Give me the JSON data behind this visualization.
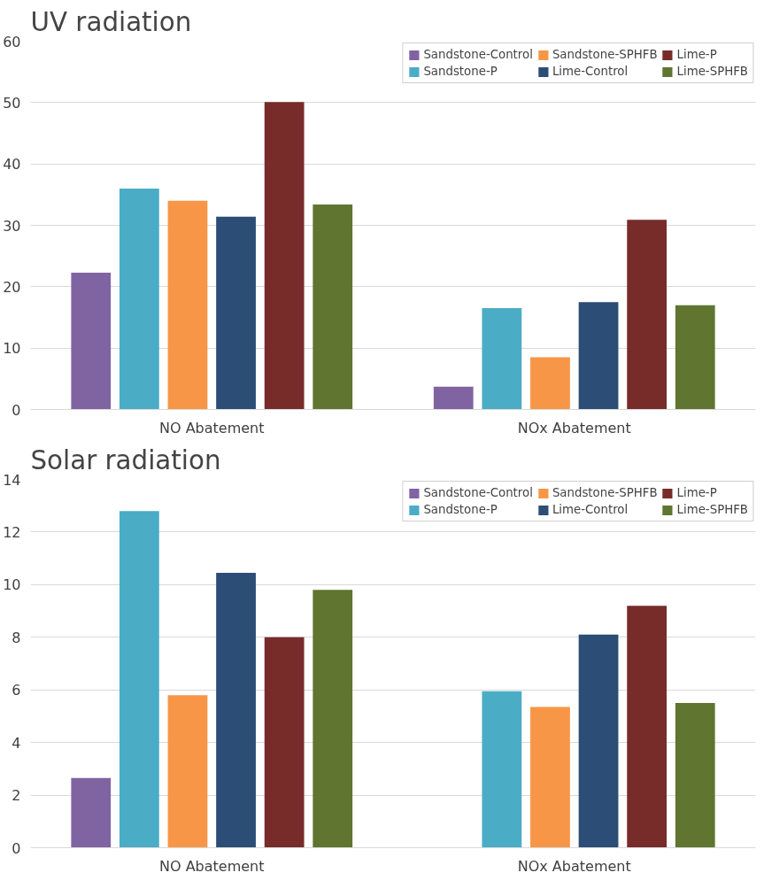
{
  "chart_data": [
    {
      "type": "bar",
      "title": "UV radiation",
      "categories": [
        "NO Abatement",
        "NOx Abatement"
      ],
      "series": [
        {
          "name": "Sandstone-Control",
          "color": "#8064a2",
          "values": [
            22.3,
            3.7
          ]
        },
        {
          "name": "Sandstone-P",
          "color": "#4bacc6",
          "values": [
            36,
            16.5
          ]
        },
        {
          "name": "Sandstone-SPHFB",
          "color": "#f79646",
          "values": [
            34,
            8.5
          ]
        },
        {
          "name": "Lime-Control",
          "color": "#2c4d75",
          "values": [
            31.4,
            17.5
          ]
        },
        {
          "name": "Lime-P",
          "color": "#772c2a",
          "values": [
            50.1,
            30.9
          ]
        },
        {
          "name": "Lime-SPHFB",
          "color": "#5f7530",
          "values": [
            33.4,
            17.0
          ]
        }
      ],
      "ylim": [
        0,
        60
      ],
      "yticks": [
        0,
        10,
        20,
        30,
        40,
        50,
        60
      ],
      "grid": "y",
      "legend": "top right"
    },
    {
      "type": "bar",
      "title": "Solar radiation",
      "categories": [
        "NO Abatement",
        "NOx Abatement"
      ],
      "series": [
        {
          "name": "Sandstone-Control",
          "color": "#8064a2",
          "values": [
            2.65,
            null
          ]
        },
        {
          "name": "Sandstone-P",
          "color": "#4bacc6",
          "values": [
            12.8,
            5.95
          ]
        },
        {
          "name": "Sandstone-SPHFB",
          "color": "#f79646",
          "values": [
            5.8,
            5.35
          ]
        },
        {
          "name": "Lime-Control",
          "color": "#2c4d75",
          "values": [
            10.45,
            8.1
          ]
        },
        {
          "name": "Lime-P",
          "color": "#772c2a",
          "values": [
            8.0,
            9.2
          ]
        },
        {
          "name": "Lime-SPHFB",
          "color": "#5f7530",
          "values": [
            9.8,
            5.5
          ]
        }
      ],
      "ylim": [
        0,
        14
      ],
      "yticks": [
        0,
        2,
        4,
        6,
        8,
        10,
        12,
        14
      ],
      "grid": "y",
      "legend": "top right"
    }
  ]
}
